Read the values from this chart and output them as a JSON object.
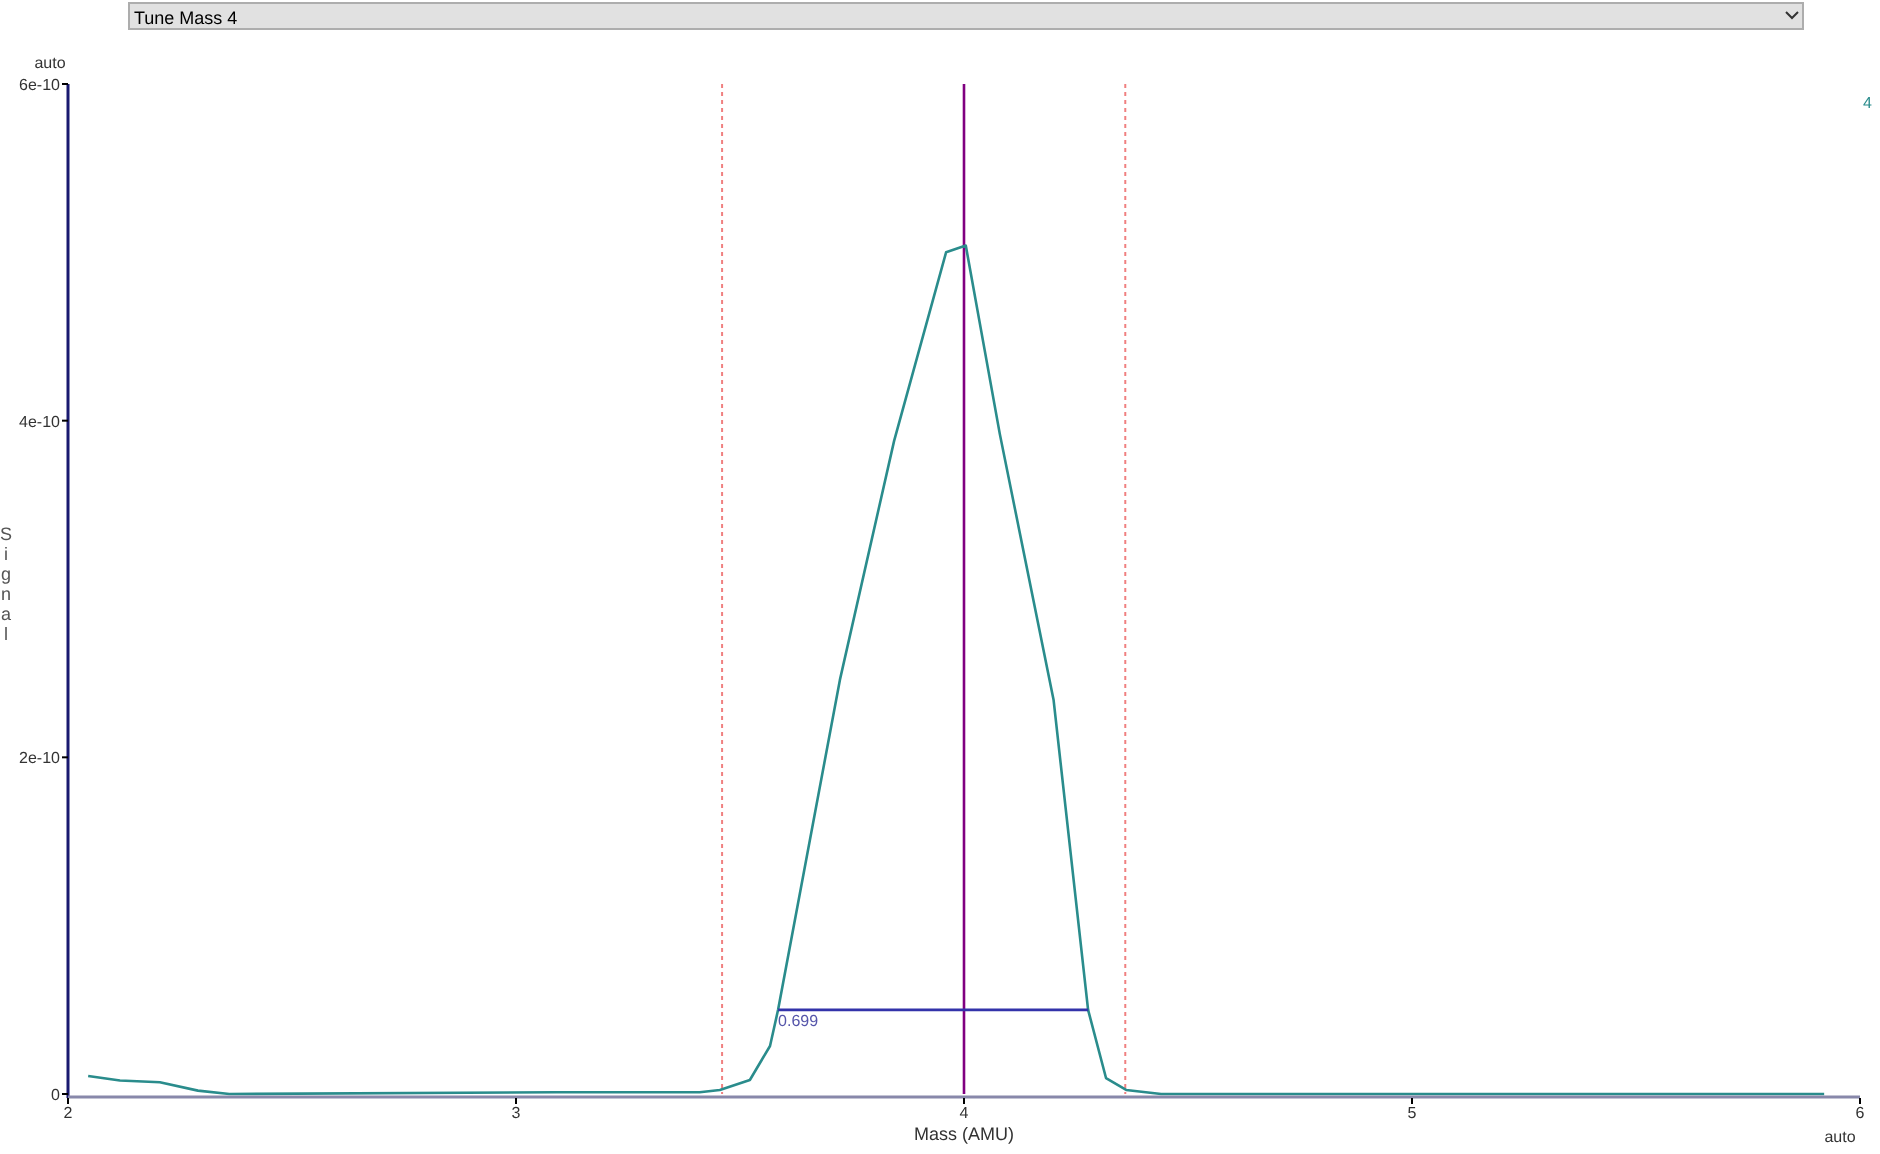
{
  "chart_data": {
    "type": "line",
    "title": "Tune Mass 4",
    "xlabel": "Mass (AMU)",
    "ylabel": "Signal",
    "xlim": [
      2,
      6
    ],
    "xticks": [
      2,
      3,
      4,
      5,
      6
    ],
    "ylim": [
      0,
      6e-10
    ],
    "yticks": [
      0,
      {
        "value": 2e-10,
        "label": "2e-10"
      },
      {
        "value": 4e-10,
        "label": "4e-10"
      },
      {
        "value": 6e-10,
        "label": "6e-10"
      }
    ],
    "grid": false,
    "legend": "top right",
    "marker": "none",
    "line_style": "solid",
    "series": [
      {
        "name": "4",
        "color": "#2a8c8c",
        "x": [
          2.045,
          2.116,
          2.205,
          2.29,
          2.36,
          3.09,
          3.41,
          3.455,
          3.522,
          3.567,
          3.585,
          3.723,
          3.844,
          3.96,
          4.004,
          4.08,
          4.2,
          4.277,
          4.317,
          4.362,
          4.44,
          5.92
        ],
        "values": [
          1.07e-11,
          8e-12,
          7e-12,
          2e-12,
          0,
          1e-12,
          1e-12,
          2.4e-12,
          8.3e-12,
          2.85e-11,
          5e-11,
          2.46e-10,
          3.88e-10,
          5e-10,
          5.04e-10,
          3.92e-10,
          2.34e-10,
          5e-11,
          9.5e-12,
          2.4e-12,
          0,
          0
        ]
      },
      {
        "color": "#3333aa",
        "x": [
          3.585,
          4.277
        ],
        "values": [
          5e-11,
          5e-11
        ]
      }
    ],
    "ref_lines": [
      {
        "axis": "x",
        "value": 3.46,
        "color": "#f08080",
        "line_style": "dotted"
      },
      {
        "axis": "x",
        "value": 4.36,
        "color": "#f08080",
        "line_style": "dotted"
      },
      {
        "axis": "x",
        "value": 4,
        "color": "#800080",
        "line_style": "solid"
      }
    ],
    "annotations": [
      "0.699",
      "auto",
      "auto"
    ]
  }
}
